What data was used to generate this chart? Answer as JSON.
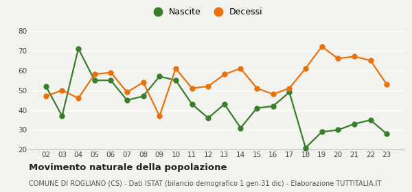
{
  "years": [
    "02",
    "03",
    "04",
    "05",
    "06",
    "07",
    "08",
    "09",
    "10",
    "11",
    "12",
    "13",
    "14",
    "15",
    "16",
    "17",
    "18",
    "19",
    "20",
    "21",
    "22",
    "23"
  ],
  "nascite": [
    52,
    37,
    71,
    55,
    55,
    45,
    47,
    57,
    55,
    43,
    36,
    43,
    31,
    41,
    42,
    49,
    21,
    29,
    30,
    33,
    35,
    28
  ],
  "decessi": [
    47,
    50,
    46,
    58,
    59,
    49,
    54,
    37,
    61,
    51,
    52,
    58,
    61,
    51,
    48,
    51,
    61,
    72,
    66,
    67,
    65,
    53
  ],
  "nascite_color": "#3a7d2c",
  "decessi_color": "#e8720c",
  "background_color": "#f2f2ee",
  "grid_color": "#ffffff",
  "title": "Movimento naturale della popolazione",
  "subtitle": "COMUNE DI ROGLIANO (CS) - Dati ISTAT (bilancio demografico 1 gen-31 dic) - Elaborazione TUTTITALIA.IT",
  "legend_nascite": "Nascite",
  "legend_decessi": "Decessi",
  "ylim": [
    20,
    80
  ],
  "yticks": [
    20,
    30,
    40,
    50,
    60,
    70,
    80
  ],
  "title_fontsize": 9.5,
  "subtitle_fontsize": 7.0,
  "legend_fontsize": 9,
  "tick_fontsize": 7.5,
  "marker_size": 5,
  "line_width": 1.6
}
